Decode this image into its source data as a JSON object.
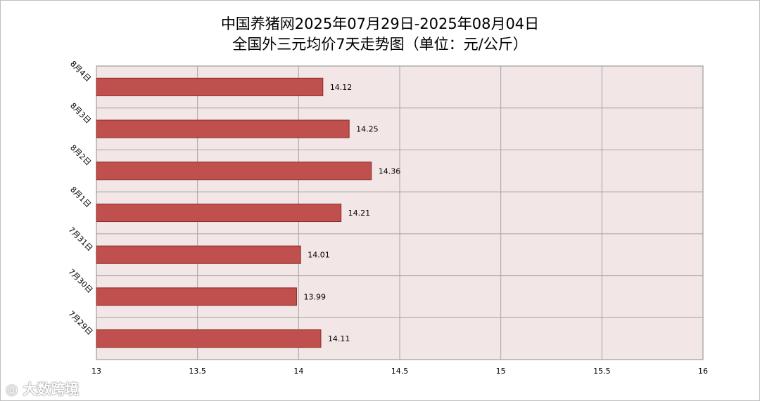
{
  "chart_data": {
    "type": "bar",
    "orientation": "horizontal",
    "title": "中国养猪网2025年07月29日-2025年08月04日",
    "subtitle": "全国外三元均价7天走势图（单位：元/公斤）",
    "categories": [
      "8月4日",
      "8月3日",
      "8月2日",
      "8月1日",
      "7月31日",
      "7月30日",
      "7月29日"
    ],
    "values": [
      14.12,
      14.25,
      14.36,
      14.21,
      14.01,
      13.99,
      14.11
    ],
    "value_labels": [
      "14.12",
      "14.25",
      "14.36",
      "14.21",
      "14.01",
      "13.99",
      "14.11"
    ],
    "xlim": [
      13,
      16
    ],
    "x_ticks": [
      "13",
      "13.5",
      "14",
      "14.5",
      "15",
      "15.5",
      "16"
    ],
    "x_tick_values": [
      13,
      13.5,
      14,
      14.5,
      15,
      15.5,
      16
    ],
    "grid": true,
    "legend": "none",
    "colors": {
      "bar_fill": "#c0504d",
      "bar_stroke": "#8b2b28",
      "plot_background": "#f2e6e6",
      "grid": "#a6a6a6"
    }
  },
  "watermark": {
    "icon": "weibo-icon",
    "text": "大数跨境"
  }
}
